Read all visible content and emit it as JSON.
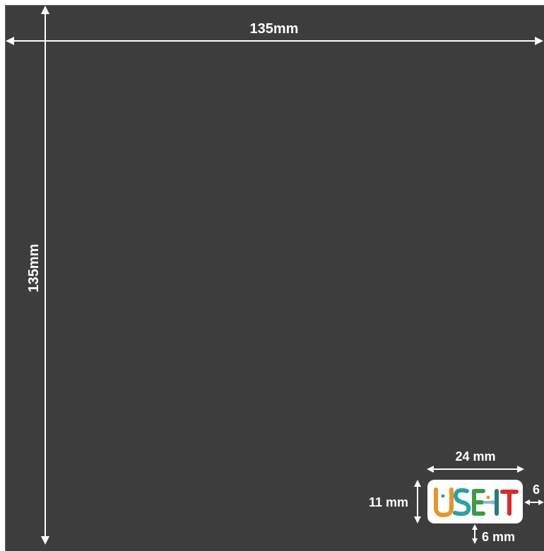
{
  "dimensions": {
    "width_label": "135mm",
    "height_label": "135mm",
    "logo_width_label": "24 mm",
    "logo_height_label": "11 mm",
    "right_margin_label": "6",
    "bottom_margin_label": "6 mm"
  },
  "logo": {
    "text": "USE-IT"
  },
  "colors": {
    "board": "#3d3d3d",
    "lines": "#ffffff",
    "logo_u": "#e8932b",
    "logo_s": "#2aa3a0",
    "logo_e": "#3e9a44",
    "logo_i": "#2d7a7a",
    "logo_t": "#d92b2b"
  }
}
